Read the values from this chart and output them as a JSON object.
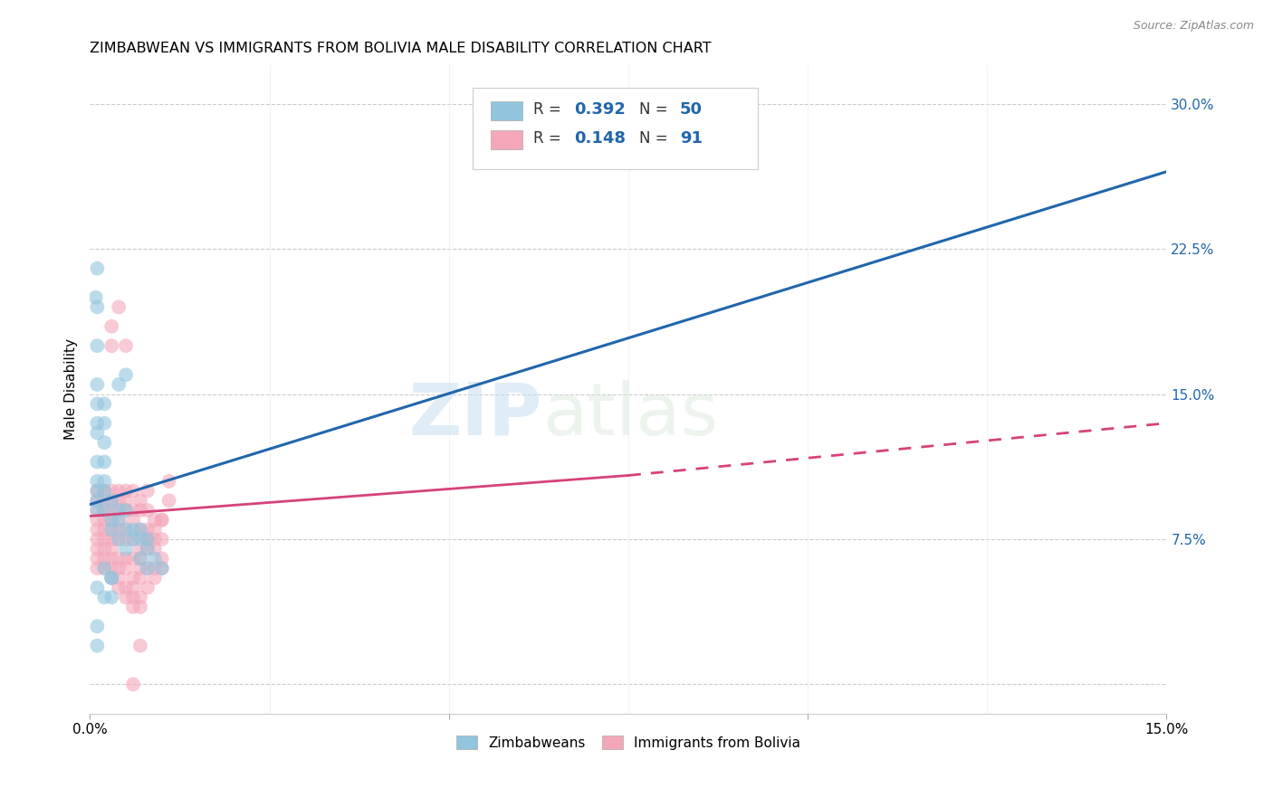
{
  "title": "ZIMBABWEAN VS IMMIGRANTS FROM BOLIVIA MALE DISABILITY CORRELATION CHART",
  "source": "Source: ZipAtlas.com",
  "ylabel": "Male Disability",
  "xlim": [
    0.0,
    0.15
  ],
  "ylim": [
    -0.015,
    0.32
  ],
  "ytick_positions": [
    0.0,
    0.075,
    0.15,
    0.225,
    0.3
  ],
  "ytick_labels": [
    "",
    "7.5%",
    "15.0%",
    "22.5%",
    "30.0%"
  ],
  "xtick_positions": [
    0.0,
    0.05,
    0.1,
    0.15
  ],
  "xtick_labels": [
    "0.0%",
    "",
    "",
    "15.0%"
  ],
  "watermark": "ZIPatlas",
  "legend_r1": "0.392",
  "legend_n1": "50",
  "legend_r2": "0.148",
  "legend_n2": "91",
  "blue_color": "#92c5de",
  "pink_color": "#f4a7b9",
  "blue_line_color": "#2166ac",
  "pink_line_color": "#d6427a",
  "blue_line": [
    [
      0.0,
      0.093
    ],
    [
      0.15,
      0.265
    ]
  ],
  "pink_line_solid": [
    [
      0.0,
      0.087
    ],
    [
      0.075,
      0.108
    ]
  ],
  "pink_line_dash": [
    [
      0.075,
      0.108
    ],
    [
      0.15,
      0.135
    ]
  ],
  "blue_scatter": [
    [
      0.001,
      0.115
    ],
    [
      0.001,
      0.13
    ],
    [
      0.001,
      0.105
    ],
    [
      0.0008,
      0.2
    ],
    [
      0.001,
      0.215
    ],
    [
      0.001,
      0.195
    ],
    [
      0.001,
      0.175
    ],
    [
      0.001,
      0.155
    ],
    [
      0.001,
      0.145
    ],
    [
      0.001,
      0.135
    ],
    [
      0.002,
      0.145
    ],
    [
      0.002,
      0.135
    ],
    [
      0.002,
      0.125
    ],
    [
      0.002,
      0.115
    ],
    [
      0.002,
      0.105
    ],
    [
      0.001,
      0.1
    ],
    [
      0.001,
      0.095
    ],
    [
      0.002,
      0.1
    ],
    [
      0.001,
      0.09
    ],
    [
      0.002,
      0.09
    ],
    [
      0.003,
      0.095
    ],
    [
      0.003,
      0.085
    ],
    [
      0.003,
      0.08
    ],
    [
      0.004,
      0.09
    ],
    [
      0.004,
      0.085
    ],
    [
      0.004,
      0.075
    ],
    [
      0.005,
      0.09
    ],
    [
      0.005,
      0.08
    ],
    [
      0.005,
      0.07
    ],
    [
      0.006,
      0.08
    ],
    [
      0.006,
      0.075
    ],
    [
      0.007,
      0.075
    ],
    [
      0.007,
      0.065
    ],
    [
      0.008,
      0.07
    ],
    [
      0.008,
      0.06
    ],
    [
      0.009,
      0.065
    ],
    [
      0.01,
      0.06
    ],
    [
      0.002,
      0.06
    ],
    [
      0.003,
      0.055
    ],
    [
      0.001,
      0.05
    ],
    [
      0.001,
      0.03
    ],
    [
      0.001,
      0.02
    ],
    [
      0.002,
      0.045
    ],
    [
      0.003,
      0.045
    ],
    [
      0.003,
      0.055
    ],
    [
      0.004,
      0.155
    ],
    [
      0.005,
      0.16
    ],
    [
      0.088,
      0.285
    ],
    [
      0.008,
      0.075
    ],
    [
      0.007,
      0.08
    ]
  ],
  "pink_scatter": [
    [
      0.001,
      0.1
    ],
    [
      0.001,
      0.095
    ],
    [
      0.001,
      0.09
    ],
    [
      0.001,
      0.085
    ],
    [
      0.001,
      0.08
    ],
    [
      0.001,
      0.075
    ],
    [
      0.001,
      0.07
    ],
    [
      0.001,
      0.065
    ],
    [
      0.001,
      0.06
    ],
    [
      0.002,
      0.1
    ],
    [
      0.002,
      0.095
    ],
    [
      0.002,
      0.09
    ],
    [
      0.002,
      0.085
    ],
    [
      0.002,
      0.08
    ],
    [
      0.002,
      0.075
    ],
    [
      0.002,
      0.07
    ],
    [
      0.002,
      0.065
    ],
    [
      0.002,
      0.06
    ],
    [
      0.003,
      0.185
    ],
    [
      0.003,
      0.175
    ],
    [
      0.003,
      0.1
    ],
    [
      0.003,
      0.095
    ],
    [
      0.003,
      0.09
    ],
    [
      0.003,
      0.085
    ],
    [
      0.003,
      0.08
    ],
    [
      0.003,
      0.075
    ],
    [
      0.003,
      0.07
    ],
    [
      0.003,
      0.065
    ],
    [
      0.003,
      0.06
    ],
    [
      0.003,
      0.055
    ],
    [
      0.004,
      0.195
    ],
    [
      0.004,
      0.1
    ],
    [
      0.004,
      0.095
    ],
    [
      0.004,
      0.09
    ],
    [
      0.004,
      0.085
    ],
    [
      0.004,
      0.08
    ],
    [
      0.004,
      0.075
    ],
    [
      0.004,
      0.065
    ],
    [
      0.004,
      0.06
    ],
    [
      0.004,
      0.055
    ],
    [
      0.004,
      0.05
    ],
    [
      0.005,
      0.175
    ],
    [
      0.005,
      0.1
    ],
    [
      0.005,
      0.095
    ],
    [
      0.005,
      0.09
    ],
    [
      0.005,
      0.08
    ],
    [
      0.005,
      0.075
    ],
    [
      0.005,
      0.065
    ],
    [
      0.005,
      0.06
    ],
    [
      0.005,
      0.05
    ],
    [
      0.005,
      0.045
    ],
    [
      0.006,
      0.1
    ],
    [
      0.006,
      0.09
    ],
    [
      0.006,
      0.085
    ],
    [
      0.006,
      0.075
    ],
    [
      0.006,
      0.065
    ],
    [
      0.006,
      0.055
    ],
    [
      0.006,
      0.05
    ],
    [
      0.006,
      0.045
    ],
    [
      0.006,
      0.04
    ],
    [
      0.007,
      0.095
    ],
    [
      0.007,
      0.09
    ],
    [
      0.007,
      0.08
    ],
    [
      0.007,
      0.07
    ],
    [
      0.007,
      0.065
    ],
    [
      0.007,
      0.06
    ],
    [
      0.007,
      0.055
    ],
    [
      0.007,
      0.045
    ],
    [
      0.007,
      0.04
    ],
    [
      0.008,
      0.09
    ],
    [
      0.008,
      0.08
    ],
    [
      0.008,
      0.07
    ],
    [
      0.008,
      0.06
    ],
    [
      0.008,
      0.05
    ],
    [
      0.008,
      0.075
    ],
    [
      0.008,
      0.1
    ],
    [
      0.009,
      0.08
    ],
    [
      0.009,
      0.07
    ],
    [
      0.009,
      0.06
    ],
    [
      0.009,
      0.055
    ],
    [
      0.009,
      0.075
    ],
    [
      0.01,
      0.085
    ],
    [
      0.01,
      0.075
    ],
    [
      0.01,
      0.065
    ],
    [
      0.01,
      0.06
    ],
    [
      0.01,
      0.085
    ],
    [
      0.007,
      0.02
    ],
    [
      0.006,
      0.0
    ],
    [
      0.008,
      0.075
    ],
    [
      0.009,
      0.085
    ],
    [
      0.011,
      0.105
    ],
    [
      0.011,
      0.095
    ]
  ]
}
